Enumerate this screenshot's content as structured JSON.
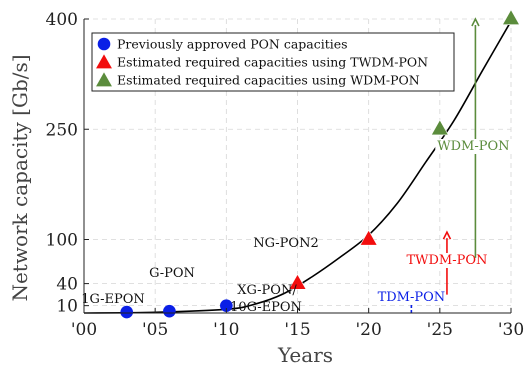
{
  "chart_data": {
    "type": "scatter",
    "title": "",
    "xlabel": "Years",
    "ylabel": "Network capacity [Gb/s]",
    "xlim": [
      2000,
      2030
    ],
    "ylim": [
      0,
      400
    ],
    "x_ticks": [
      2000,
      2005,
      2010,
      2015,
      2020,
      2025,
      2030
    ],
    "x_tick_labels": [
      "'00",
      "'05",
      "'10",
      "'15",
      "'20",
      "'25",
      "'30"
    ],
    "y_ticks": [
      10,
      40,
      100,
      250,
      400
    ],
    "y_tick_labels": [
      "10",
      "40",
      "100",
      "250",
      "400"
    ],
    "grid": true,
    "legend_position": "top-left",
    "series": [
      {
        "name": "Previously approved PON capacities",
        "marker": "circle",
        "color": "#0a1fe6",
        "points": [
          {
            "x": 2003,
            "y": 1.25
          },
          {
            "x": 2006,
            "y": 2.5
          },
          {
            "x": 2010,
            "y": 10
          }
        ]
      },
      {
        "name": "Estimated required capacities using TWDM-PON",
        "marker": "triangle",
        "color": "#f20d0d",
        "points": [
          {
            "x": 2015,
            "y": 40
          },
          {
            "x": 2020,
            "y": 100
          }
        ]
      },
      {
        "name": "Estimated required capacities using WDM-PON",
        "marker": "triangle",
        "color": "#5b8c3c",
        "points": [
          {
            "x": 2025,
            "y": 250
          },
          {
            "x": 2030,
            "y": 400
          }
        ]
      }
    ],
    "trend_curve": {
      "x": [
        2000,
        2005,
        2010,
        2012,
        2014,
        2016,
        2018,
        2020,
        2022,
        2024,
        2026,
        2028,
        2030
      ],
      "y": [
        0,
        1,
        5,
        12,
        26,
        49,
        76,
        106,
        149,
        205,
        262,
        330,
        397
      ]
    },
    "point_labels": [
      {
        "text": "1G-EPON"
      },
      {
        "text": "G-PON"
      },
      {
        "text": "XG-PON/"
      },
      {
        "text": "10G-EPON"
      },
      {
        "text": "NG-PON2"
      }
    ],
    "arrows": [
      {
        "label": "TDM-PON",
        "x": 2023,
        "y_from": 0,
        "y_to": 25,
        "color": "#0a1fe6",
        "style": "dashed"
      },
      {
        "label": "TWDM-PON",
        "x": 2025.5,
        "y_from": 25,
        "y_to": 110,
        "color": "#f20d0d",
        "style": "solid"
      },
      {
        "label": "WDM-PON",
        "x": 2027.5,
        "y_from": 75,
        "y_to": 400,
        "color": "#5b8c3c",
        "style": "solid"
      }
    ]
  }
}
